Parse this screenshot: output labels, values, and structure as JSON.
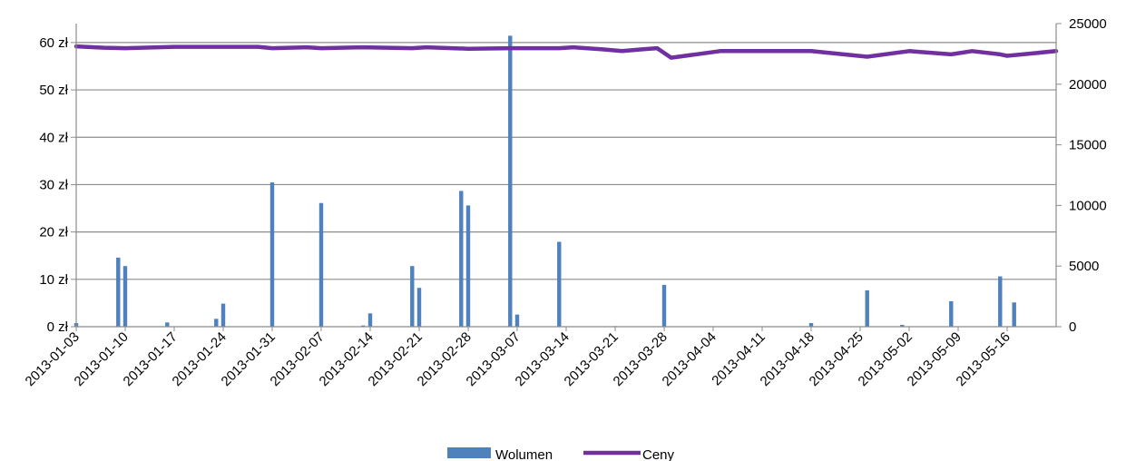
{
  "chart_data": {
    "type": "bar+line",
    "title": "",
    "xlabel": "",
    "ylabel": "",
    "y2label": "",
    "grid": "horizontal",
    "legend_position": "bottom-center",
    "x_tick_labels": [
      "2013-01-03",
      "2013-01-10",
      "2013-01-17",
      "2013-01-24",
      "2013-01-31",
      "2013-02-07",
      "2013-02-14",
      "2013-02-21",
      "2013-02-28",
      "2013-03-07",
      "2013-03-14",
      "2013-03-21",
      "2013-03-28",
      "2013-04-04",
      "2013-04-11",
      "2013-04-18",
      "2013-04-25",
      "2013-05-02",
      "2013-05-09",
      "2013-05-16"
    ],
    "x_range": [
      "2013-01-03",
      "2013-05-23"
    ],
    "y_left": {
      "min": 0,
      "max": 64,
      "ticks": [
        0,
        10,
        20,
        30,
        40,
        50,
        60
      ],
      "tick_labels": [
        "0 zł",
        "10 zł",
        "20 zł",
        "30 zł",
        "40 zł",
        "50 zł",
        "60 zł"
      ]
    },
    "y_right": {
      "min": 0,
      "max": 25000,
      "ticks": [
        0,
        5000,
        10000,
        15000,
        20000,
        25000
      ],
      "tick_labels": [
        "0",
        "5000",
        "10000",
        "15000",
        "20000",
        "25000"
      ]
    },
    "series": [
      {
        "name": "Wolumen",
        "type": "bar",
        "axis": "right",
        "color": "#4f81bd",
        "points": [
          {
            "x": "2013-01-03",
            "y": 300
          },
          {
            "x": "2013-01-09",
            "y": 5700
          },
          {
            "x": "2013-01-10",
            "y": 5000
          },
          {
            "x": "2013-01-16",
            "y": 350
          },
          {
            "x": "2013-01-23",
            "y": 650
          },
          {
            "x": "2013-01-24",
            "y": 1900
          },
          {
            "x": "2013-01-31",
            "y": 11900
          },
          {
            "x": "2013-02-07",
            "y": 10200
          },
          {
            "x": "2013-02-13",
            "y": 100
          },
          {
            "x": "2013-02-14",
            "y": 1100
          },
          {
            "x": "2013-02-20",
            "y": 5000
          },
          {
            "x": "2013-02-21",
            "y": 3200
          },
          {
            "x": "2013-02-27",
            "y": 11200
          },
          {
            "x": "2013-02-28",
            "y": 10000
          },
          {
            "x": "2013-03-06",
            "y": 24000
          },
          {
            "x": "2013-03-07",
            "y": 1000
          },
          {
            "x": "2013-03-13",
            "y": 7000
          },
          {
            "x": "2013-03-21",
            "y": 50
          },
          {
            "x": "2013-03-28",
            "y": 3450
          },
          {
            "x": "2013-04-18",
            "y": 300
          },
          {
            "x": "2013-04-26",
            "y": 3000
          },
          {
            "x": "2013-05-01",
            "y": 150
          },
          {
            "x": "2013-05-08",
            "y": 2100
          },
          {
            "x": "2013-05-15",
            "y": 4150
          },
          {
            "x": "2013-05-17",
            "y": 2000
          }
        ]
      },
      {
        "name": "Ceny",
        "type": "line",
        "axis": "left",
        "color": "#7030a0",
        "points": [
          {
            "x": "2013-01-03",
            "y": 59.2
          },
          {
            "x": "2013-01-07",
            "y": 58.9
          },
          {
            "x": "2013-01-10",
            "y": 58.8
          },
          {
            "x": "2013-01-17",
            "y": 59.1
          },
          {
            "x": "2013-01-24",
            "y": 59.1
          },
          {
            "x": "2013-01-29",
            "y": 59.1
          },
          {
            "x": "2013-01-31",
            "y": 58.8
          },
          {
            "x": "2013-02-05",
            "y": 59.0
          },
          {
            "x": "2013-02-07",
            "y": 58.8
          },
          {
            "x": "2013-02-13",
            "y": 59.0
          },
          {
            "x": "2013-02-20",
            "y": 58.8
          },
          {
            "x": "2013-02-22",
            "y": 59.0
          },
          {
            "x": "2013-02-28",
            "y": 58.7
          },
          {
            "x": "2013-03-06",
            "y": 58.8
          },
          {
            "x": "2013-03-13",
            "y": 58.8
          },
          {
            "x": "2013-03-15",
            "y": 59.0
          },
          {
            "x": "2013-03-19",
            "y": 58.6
          },
          {
            "x": "2013-03-22",
            "y": 58.2
          },
          {
            "x": "2013-03-25",
            "y": 58.6
          },
          {
            "x": "2013-03-27",
            "y": 58.8
          },
          {
            "x": "2013-03-29",
            "y": 56.8
          },
          {
            "x": "2013-04-05",
            "y": 58.2
          },
          {
            "x": "2013-04-18",
            "y": 58.2
          },
          {
            "x": "2013-04-26",
            "y": 57.0
          },
          {
            "x": "2013-05-02",
            "y": 58.2
          },
          {
            "x": "2013-05-08",
            "y": 57.5
          },
          {
            "x": "2013-05-11",
            "y": 58.2
          },
          {
            "x": "2013-05-15",
            "y": 57.5
          },
          {
            "x": "2013-05-16",
            "y": 57.2
          },
          {
            "x": "2013-05-23",
            "y": 58.2
          }
        ]
      }
    ]
  }
}
